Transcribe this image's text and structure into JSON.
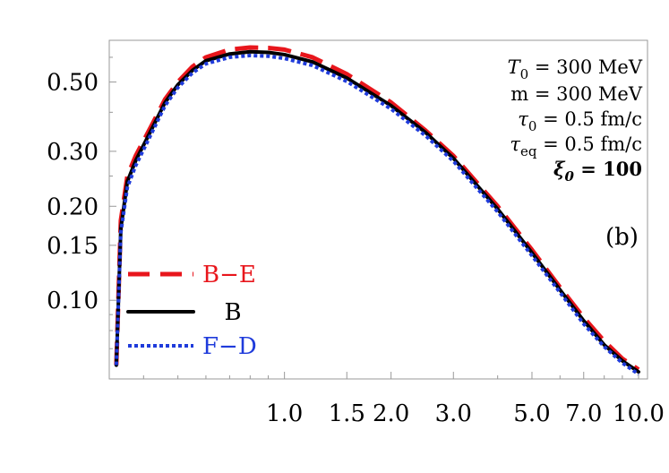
{
  "chart_data": {
    "type": "line",
    "title": "",
    "xlabel": "",
    "ylabel": "",
    "x_scale": "log",
    "y_scale": "log",
    "xlim": [
      0.32,
      10.6
    ],
    "ylim": [
      0.056,
      0.68
    ],
    "x_ticks": [
      {
        "value": 1.0,
        "label": "1.0"
      },
      {
        "value": 1.5,
        "label": "1.5"
      },
      {
        "value": 2.0,
        "label": "2.0"
      },
      {
        "value": 3.0,
        "label": "3.0"
      },
      {
        "value": 5.0,
        "label": "5.0"
      },
      {
        "value": 7.0,
        "label": "7.0"
      },
      {
        "value": 10.0,
        "label": "10.0"
      }
    ],
    "y_ticks": [
      {
        "value": 0.1,
        "label": "0.10"
      },
      {
        "value": 0.15,
        "label": "0.15"
      },
      {
        "value": 0.2,
        "label": "0.20"
      },
      {
        "value": 0.3,
        "label": "0.30"
      },
      {
        "value": 0.5,
        "label": "0.50"
      }
    ],
    "grid": false,
    "legend_position": "bottom-left",
    "annotations": [
      {
        "math": "T",
        "sub": "0",
        "rest": " = 300 MeV"
      },
      {
        "math": "",
        "sub": "",
        "rest": "m = 300 MeV"
      },
      {
        "math": "τ",
        "sub": "0",
        "rest": " = 0.5 fm/c"
      },
      {
        "math": "τ",
        "sub": "eq",
        "rest": " = 0.5 fm/c"
      },
      {
        "math": "ξ",
        "sub": "0",
        "rest": " = 100",
        "bold": true
      }
    ],
    "panel_label": "(b)",
    "series": [
      {
        "name": "B−E",
        "color": "#e8161c",
        "style": "dashed",
        "x": [
          0.335,
          0.345,
          0.36,
          0.38,
          0.42,
          0.46,
          0.5,
          0.55,
          0.6,
          0.7,
          0.8,
          0.9,
          1.0,
          1.2,
          1.5,
          2.0,
          2.5,
          3.0,
          4.0,
          5.0,
          6.0,
          7.0,
          8.0,
          9.0,
          10.0
        ],
        "y": [
          0.062,
          0.18,
          0.25,
          0.29,
          0.36,
          0.44,
          0.5,
          0.56,
          0.6,
          0.635,
          0.645,
          0.643,
          0.635,
          0.6,
          0.53,
          0.43,
          0.35,
          0.29,
          0.2,
          0.145,
          0.11,
          0.088,
          0.074,
          0.065,
          0.06
        ]
      },
      {
        "name": "B",
        "color": "#000000",
        "style": "solid",
        "x": [
          0.335,
          0.345,
          0.36,
          0.38,
          0.42,
          0.46,
          0.5,
          0.55,
          0.6,
          0.7,
          0.8,
          0.9,
          1.0,
          1.2,
          1.5,
          2.0,
          2.5,
          3.0,
          4.0,
          5.0,
          6.0,
          7.0,
          8.0,
          9.0,
          10.0
        ],
        "y": [
          0.062,
          0.17,
          0.24,
          0.28,
          0.35,
          0.43,
          0.49,
          0.545,
          0.585,
          0.615,
          0.625,
          0.622,
          0.612,
          0.58,
          0.515,
          0.42,
          0.345,
          0.285,
          0.196,
          0.142,
          0.108,
          0.086,
          0.072,
          0.064,
          0.059
        ]
      },
      {
        "name": "F−D",
        "color": "#1f3bdb",
        "style": "dotted",
        "x": [
          0.335,
          0.345,
          0.36,
          0.38,
          0.42,
          0.46,
          0.5,
          0.55,
          0.6,
          0.7,
          0.8,
          0.9,
          1.0,
          1.2,
          1.5,
          2.0,
          2.5,
          3.0,
          4.0,
          5.0,
          6.0,
          7.0,
          8.0,
          9.0,
          10.0
        ],
        "y": [
          0.062,
          0.165,
          0.23,
          0.27,
          0.34,
          0.42,
          0.48,
          0.535,
          0.572,
          0.6,
          0.608,
          0.605,
          0.595,
          0.565,
          0.502,
          0.41,
          0.337,
          0.279,
          0.192,
          0.139,
          0.106,
          0.084,
          0.071,
          0.063,
          0.058
        ]
      }
    ]
  }
}
